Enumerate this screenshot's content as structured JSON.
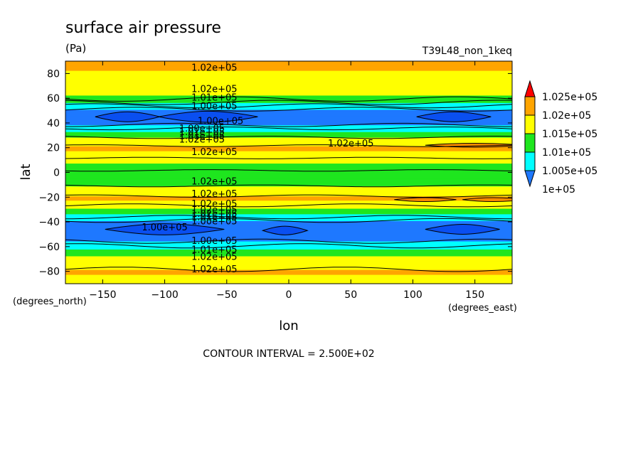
{
  "chart_data": {
    "type": "contour",
    "title": "surface air pressure",
    "units": "(Pa)",
    "run_label": "T39L48_non_1keq",
    "xlabel": "lon",
    "ylabel": "lat",
    "x_units": "(degrees_east)",
    "y_units": "(degrees_north)",
    "xlim": [
      -180,
      180
    ],
    "ylim": [
      -90,
      90
    ],
    "x_ticks": [
      -150,
      -100,
      -50,
      0,
      50,
      100,
      150
    ],
    "x_tick_labels": [
      "−150",
      "−100",
      "−50",
      "0",
      "50",
      "100",
      "150"
    ],
    "y_ticks": [
      -80,
      -60,
      -40,
      -20,
      0,
      20,
      40,
      60,
      80
    ],
    "y_tick_labels": [
      "−80",
      "−60",
      "−40",
      "−20",
      "0",
      "20",
      "40",
      "60",
      "80"
    ],
    "contour_interval_text": "CONTOUR INTERVAL = 2.500E+02",
    "colorbar": {
      "levels": [
        100000,
        100500,
        101000,
        101500,
        102000,
        102500
      ],
      "labels": [
        "1e+05",
        "1.005e+05",
        "1.01e+05",
        "1.015e+05",
        "1.02e+05",
        "1.025e+05"
      ],
      "colors": [
        "#1e78ff",
        "#00ffff",
        "#1ee61e",
        "#ffff00",
        "#ffa500",
        "#ff0000"
      ]
    },
    "zonal_profile": {
      "lat": [
        -90,
        -85,
        -80,
        -75,
        -70,
        -65,
        -60,
        -55,
        -50,
        -45,
        -40,
        -35,
        -30,
        -25,
        -20,
        -15,
        -10,
        -5,
        0,
        5,
        10,
        15,
        20,
        25,
        30,
        35,
        40,
        45,
        50,
        55,
        60,
        65,
        70,
        75,
        80,
        85,
        90
      ],
      "pressure": [
        101900,
        101950,
        102050,
        101900,
        101700,
        101300,
        100800,
        100450,
        100300,
        100250,
        100400,
        100850,
        101350,
        101950,
        102050,
        101750,
        101450,
        101250,
        101200,
        101350,
        101650,
        101950,
        102050,
        101900,
        101300,
        100800,
        100350,
        100250,
        100400,
        100850,
        101300,
        101700,
        101900,
        102000,
        101950,
        102050,
        102000
      ]
    },
    "contour_labels": [
      {
        "text": "1.02e+05",
        "lon": -60,
        "lat": 85
      },
      {
        "text": "1.02e+05",
        "lon": -60,
        "lat": 68
      },
      {
        "text": "1.01e+05",
        "lon": -60,
        "lat": 61
      },
      {
        "text": "1.00e+05",
        "lon": -60,
        "lat": 54
      },
      {
        "text": "1.00e+05",
        "lon": -55,
        "lat": 42
      },
      {
        "text": "1.00e+05",
        "lon": -70,
        "lat": 36
      },
      {
        "text": "1.01e+05",
        "lon": -70,
        "lat": 33
      },
      {
        "text": "1.01e+05",
        "lon": -70,
        "lat": 30
      },
      {
        "text": "1.02e+05",
        "lon": -70,
        "lat": 27
      },
      {
        "text": "1.02e+05",
        "lon": 50,
        "lat": 24
      },
      {
        "text": "1.02e+05",
        "lon": -60,
        "lat": 17
      },
      {
        "text": "1.02e+05",
        "lon": -60,
        "lat": -7
      },
      {
        "text": "1.02e+05",
        "lon": -60,
        "lat": -17
      },
      {
        "text": "1.02e+05",
        "lon": -60,
        "lat": -25
      },
      {
        "text": "1.02e+05",
        "lon": -60,
        "lat": -30
      },
      {
        "text": "1.02e+05",
        "lon": -60,
        "lat": -33
      },
      {
        "text": "1.01e+05",
        "lon": -60,
        "lat": -36
      },
      {
        "text": "1.00e+05",
        "lon": -60,
        "lat": -39
      },
      {
        "text": "1.00e+05",
        "lon": -100,
        "lat": -44
      },
      {
        "text": "1.00e+05",
        "lon": -60,
        "lat": -55
      },
      {
        "text": "1.01e+05",
        "lon": -60,
        "lat": -62
      },
      {
        "text": "1.02e+05",
        "lon": -60,
        "lat": -68
      },
      {
        "text": "1.02e+05",
        "lon": -60,
        "lat": -78
      }
    ],
    "low_cells": [
      {
        "lon": -130,
        "lat": 45,
        "dlon": 26,
        "dlat": 4
      },
      {
        "lon": -65,
        "lat": 45,
        "dlon": 40,
        "dlat": 4.5
      },
      {
        "lon": 133,
        "lat": 45,
        "dlon": 30,
        "dlat": 4
      },
      {
        "lon": -100,
        "lat": -46,
        "dlon": 48,
        "dlat": 4.5
      },
      {
        "lon": -3,
        "lat": -47,
        "dlon": 18,
        "dlat": 3.5
      },
      {
        "lon": 140,
        "lat": -46,
        "dlon": 30,
        "dlat": 4
      }
    ],
    "high_cells": [
      {
        "lon": 150,
        "lat": 22,
        "dlon": 40,
        "dlat": 2
      },
      {
        "lon": 110,
        "lat": -22,
        "dlon": 25,
        "dlat": 2
      },
      {
        "lon": 165,
        "lat": -22,
        "dlon": 25,
        "dlat": 2
      }
    ]
  }
}
